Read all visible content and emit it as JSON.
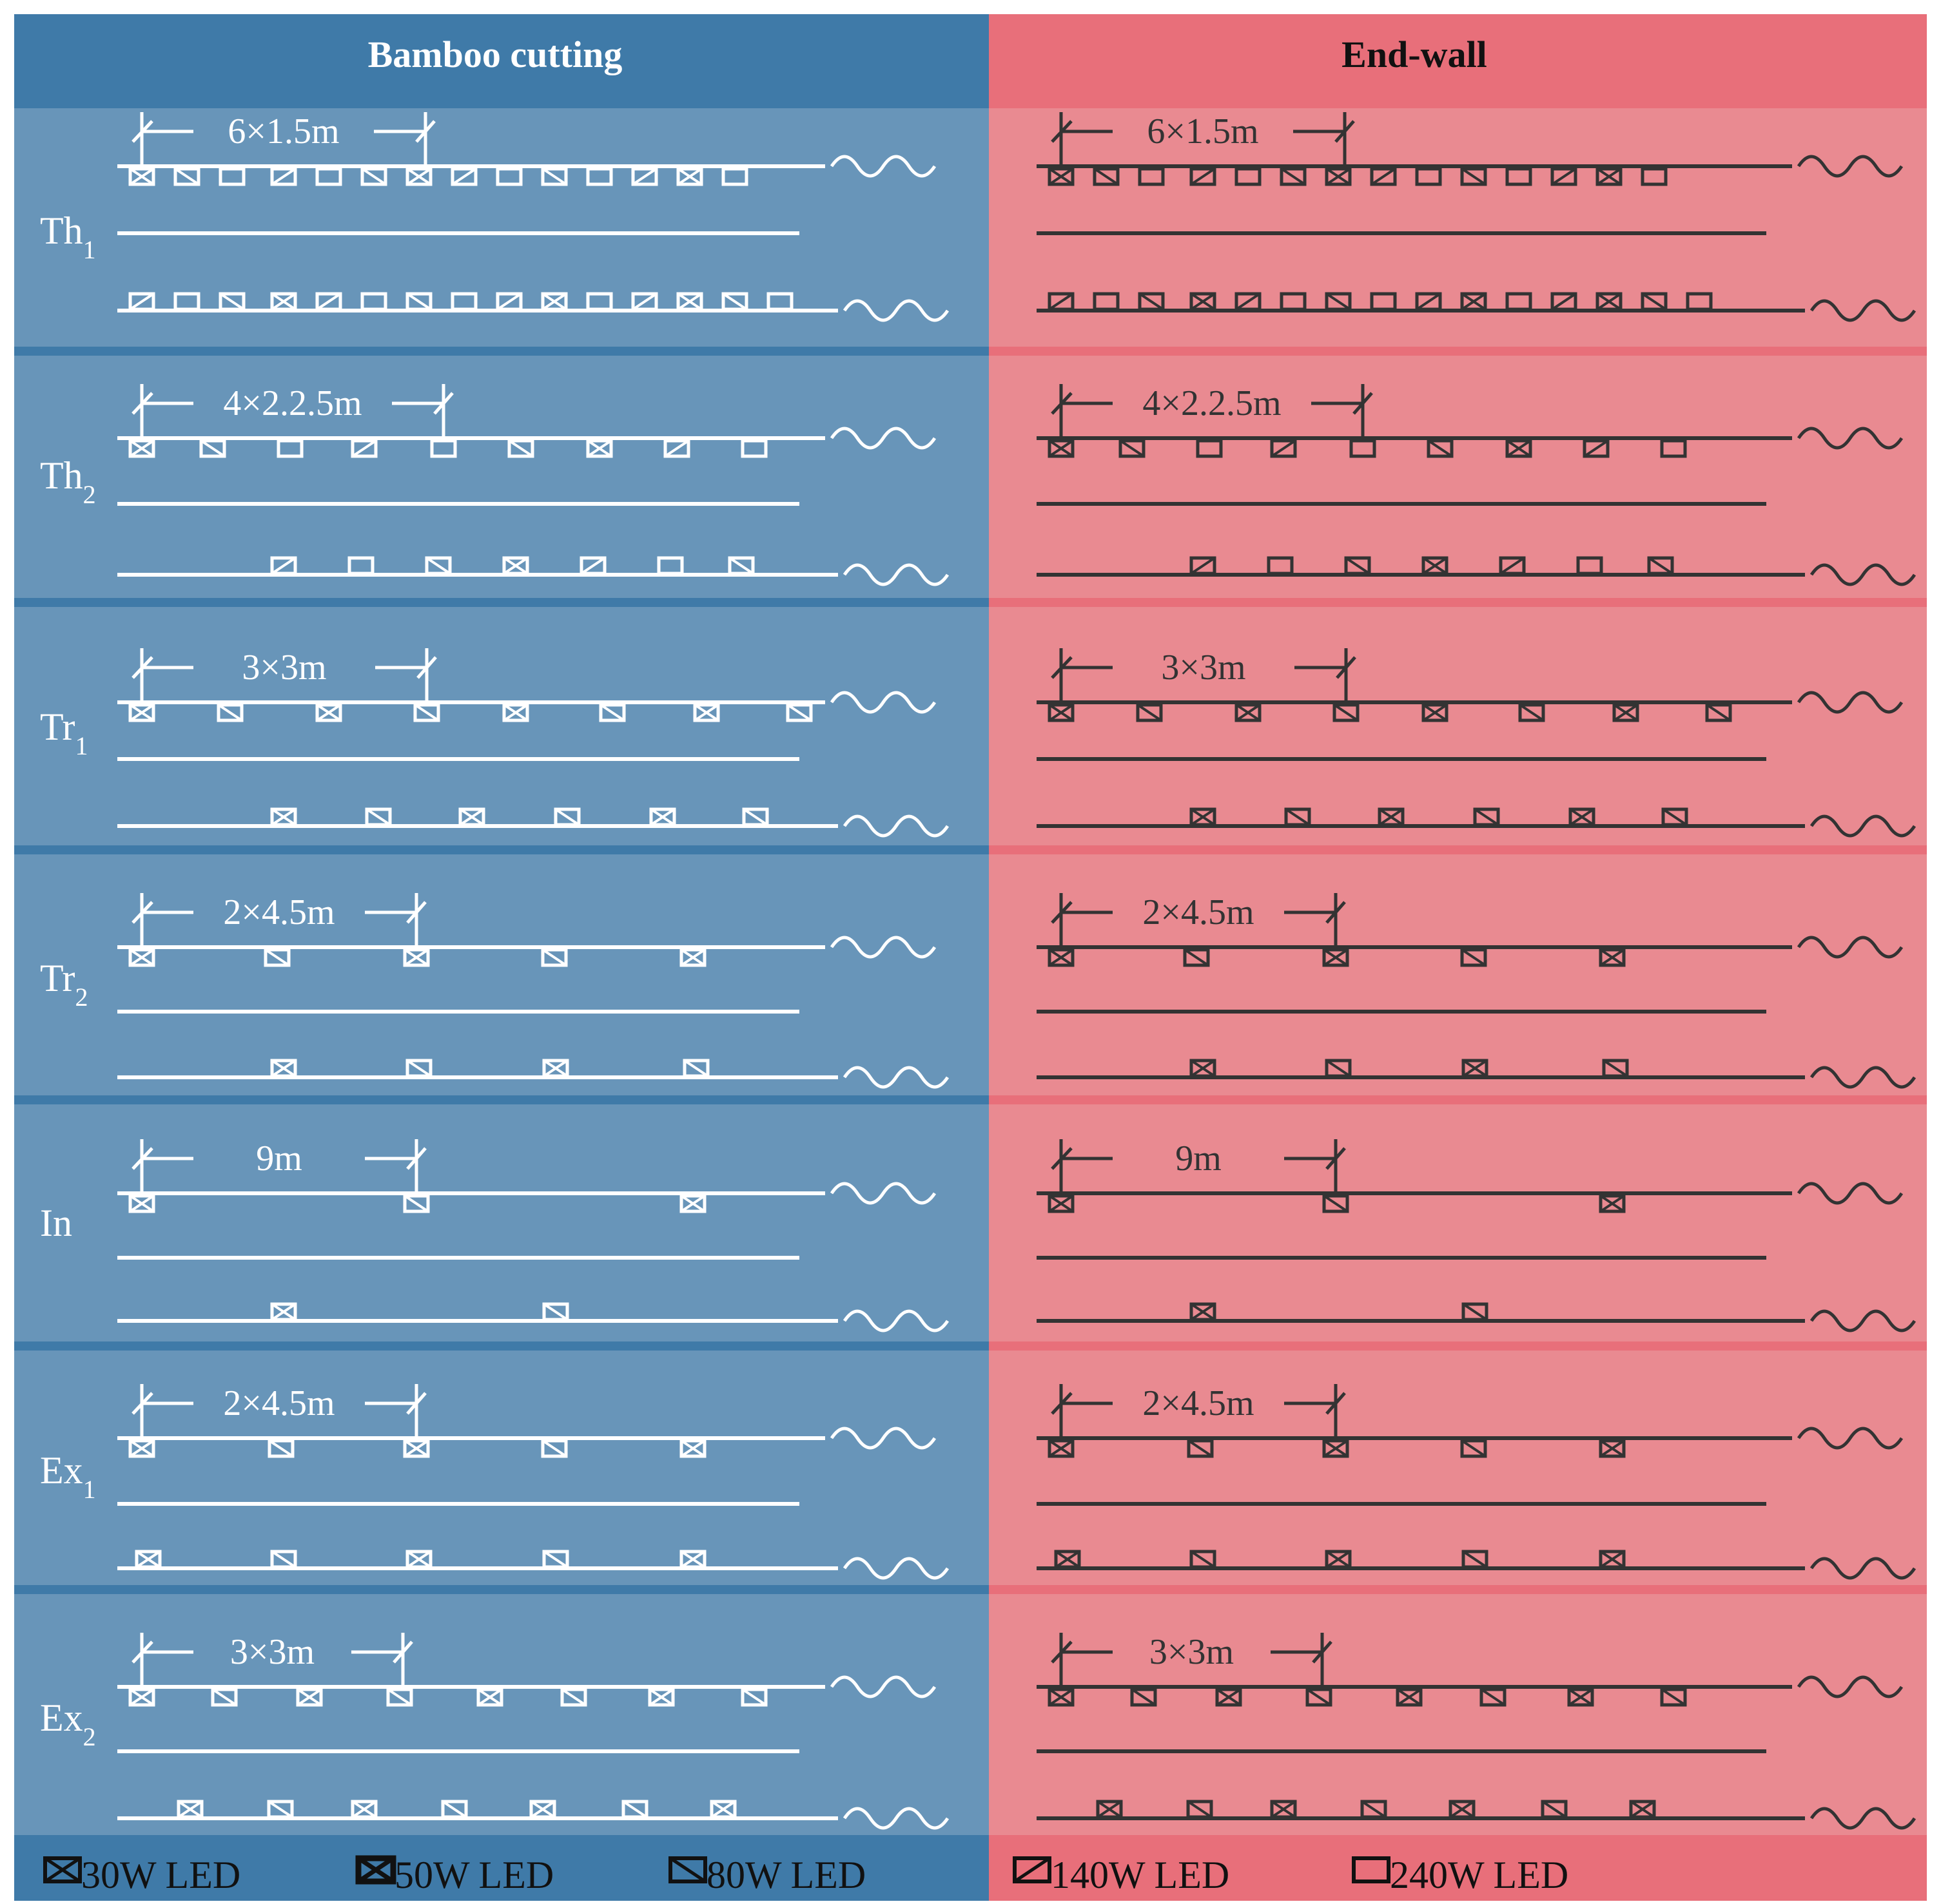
{
  "headers": {
    "bamboo": "Bamboo cutting",
    "endwall": "End-wall"
  },
  "colors": {
    "bamboo_header": "#3f7aa8",
    "bamboo_body": "#6895b9",
    "endwall_header": "#e86f7a",
    "endwall_body": "#e98a91",
    "bamboo_ink": "#ffffff",
    "endwall_ink": "#333333"
  },
  "legend": [
    {
      "icon": "led-30w-icon",
      "label": "30W LED"
    },
    {
      "icon": "led-50w-icon",
      "label": "50W LED"
    },
    {
      "icon": "led-80w-icon",
      "label": "80W LED"
    },
    {
      "icon": "led-140w-icon",
      "label": "140W LED"
    },
    {
      "icon": "led-240w-icon",
      "label": "240W LED"
    }
  ],
  "rows": [
    {
      "id": "Th1",
      "main": "Th",
      "sub": "1",
      "spacing": "6×1.5m"
    },
    {
      "id": "Th2",
      "main": "Th",
      "sub": "2",
      "spacing": "4×2.2.5m"
    },
    {
      "id": "Tr1",
      "main": "Tr",
      "sub": "1",
      "spacing": "3×3m"
    },
    {
      "id": "Tr2",
      "main": "Tr",
      "sub": "2",
      "spacing": "2×4.5m"
    },
    {
      "id": "In",
      "main": "In",
      "sub": "",
      "spacing": "9m"
    },
    {
      "id": "Ex1",
      "main": "Ex",
      "sub": "1",
      "spacing": "2×4.5m"
    },
    {
      "id": "Ex2",
      "main": "Ex",
      "sub": "2",
      "spacing": "3×3m"
    }
  ]
}
